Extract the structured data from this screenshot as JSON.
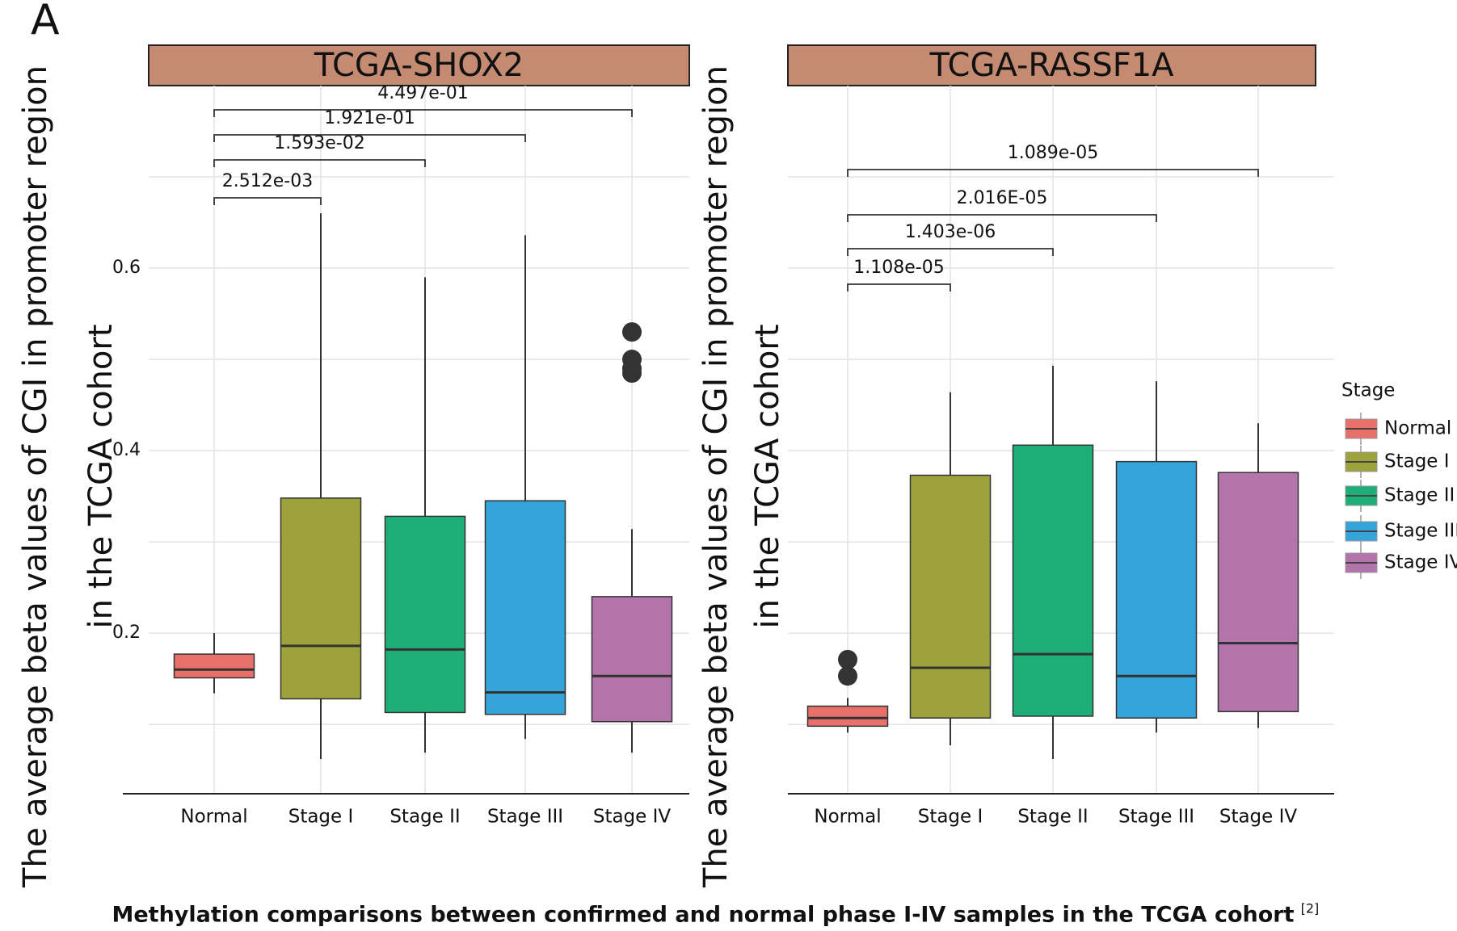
{
  "panel_label": "A",
  "caption": "Methylation comparisons between confirmed and normal phase I-IV samples in the TCGA cohort",
  "caption_ref": "[2]",
  "chart_data": [
    {
      "type": "box",
      "title": "TCGA-SHOX2",
      "ylabel": [
        "The average beta values of CGI in promoter region",
        "in the TCGA cohort"
      ],
      "categories": [
        "Normal",
        "Stage I",
        "Stage II",
        "Stage III",
        "Stage IV"
      ],
      "colors": [
        "#e8706a",
        "#9da33a",
        "#1eae78",
        "#35a4d9",
        "#b274aa"
      ],
      "boxes": [
        {
          "low": 0.134,
          "q1": 0.151,
          "median": 0.16,
          "q3": 0.177,
          "high": 0.2,
          "outliers": []
        },
        {
          "low": 0.062,
          "q1": 0.128,
          "median": 0.186,
          "q3": 0.348,
          "high": 0.66,
          "outliers": []
        },
        {
          "low": 0.069,
          "q1": 0.113,
          "median": 0.182,
          "q3": 0.328,
          "high": 0.59,
          "outliers": []
        },
        {
          "low": 0.084,
          "q1": 0.111,
          "median": 0.135,
          "q3": 0.345,
          "high": 0.636,
          "outliers": []
        },
        {
          "low": 0.069,
          "q1": 0.103,
          "median": 0.153,
          "q3": 0.24,
          "high": 0.314,
          "outliers": [
            0.53,
            0.5,
            0.49,
            0.485
          ]
        }
      ],
      "annotations": [
        "2.512e-03",
        "1.593e-02",
        "1.921e-01",
        "4.497e-01"
      ],
      "ylim": [
        0.024,
        0.8
      ],
      "yticks": [
        0.2,
        0.4,
        0.6
      ],
      "ygrid": [
        0.1,
        0.2,
        0.3,
        0.4,
        0.5,
        0.6,
        0.7
      ],
      "grid": true
    },
    {
      "type": "box",
      "title": "TCGA-RASSF1A",
      "ylabel": [
        "The average beta values of CGI in promoter region",
        "in the TCGA cohort"
      ],
      "categories": [
        "Normal",
        "Stage I",
        "Stage II",
        "Stage III",
        "Stage IV"
      ],
      "colors": [
        "#e8706a",
        "#9da33a",
        "#1eae78",
        "#35a4d9",
        "#b274aa"
      ],
      "boxes": [
        {
          "low": 0.091,
          "q1": 0.098,
          "median": 0.107,
          "q3": 0.12,
          "high": 0.129,
          "outliers": [
            0.171,
            0.153
          ]
        },
        {
          "low": 0.077,
          "q1": 0.107,
          "median": 0.162,
          "q3": 0.373,
          "high": 0.464,
          "outliers": []
        },
        {
          "low": 0.062,
          "q1": 0.109,
          "median": 0.177,
          "q3": 0.406,
          "high": 0.493,
          "outliers": []
        },
        {
          "low": 0.091,
          "q1": 0.107,
          "median": 0.153,
          "q3": 0.388,
          "high": 0.476,
          "outliers": []
        },
        {
          "low": 0.096,
          "q1": 0.114,
          "median": 0.189,
          "q3": 0.376,
          "high": 0.43,
          "outliers": []
        }
      ],
      "annotations": [
        "1.108e-05",
        "1.403e-06",
        "2.016E-05",
        "1.089e-05"
      ],
      "ylim": [
        0.024,
        0.8
      ],
      "ygrid": [
        0.1,
        0.2,
        0.3,
        0.4,
        0.5,
        0.6,
        0.7
      ],
      "grid": true,
      "legend": {
        "title": "Stage",
        "position": "right"
      }
    }
  ]
}
